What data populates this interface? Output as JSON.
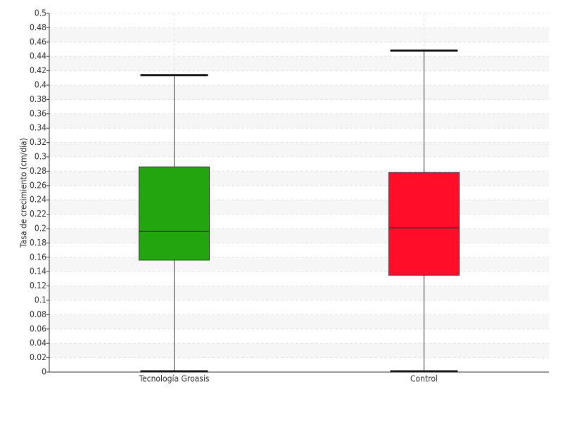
{
  "chart_data": {
    "type": "box",
    "y_label": "Tasa de crecimiento (cm/día)",
    "categories": [
      "Tecnología Groasis",
      "Control"
    ],
    "boxes": [
      {
        "min": 0,
        "q1": 0.156,
        "median": 0.196,
        "q3": 0.286,
        "max": 0.414,
        "color": "#22a50f"
      },
      {
        "min": 0,
        "q1": 0.135,
        "median": 0.201,
        "q3": 0.278,
        "max": 0.448,
        "color": "#ff0d29"
      }
    ],
    "ylim": [
      0,
      0.5
    ],
    "yticks": [
      0,
      0.02,
      0.04,
      0.06,
      0.08,
      0.1,
      0.12,
      0.14,
      0.16,
      0.18,
      0.2,
      0.22,
      0.24,
      0.26,
      0.28,
      0.3,
      0.32,
      0.34,
      0.36,
      0.38,
      0.4,
      0.42,
      0.44,
      0.46,
      0.48,
      0.5
    ],
    "grid": true
  }
}
